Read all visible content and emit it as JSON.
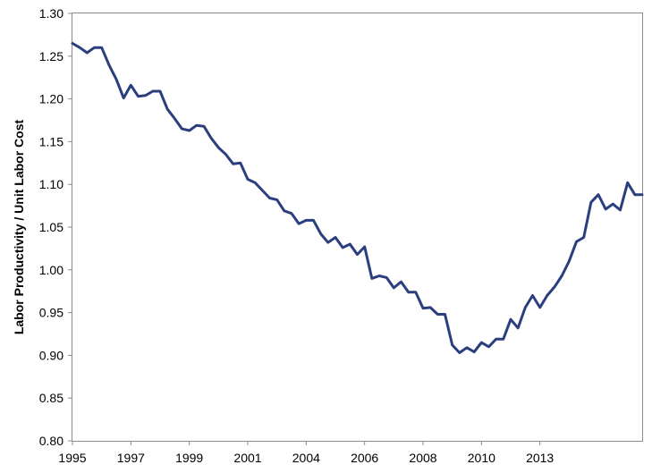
{
  "chart_data": {
    "type": "line",
    "title": "",
    "xlabel": "",
    "ylabel": "Labor Productivity / Unit Labor Cost",
    "ylim": [
      0.8,
      1.3
    ],
    "yticks": [
      "0.80",
      "0.85",
      "0.90",
      "0.95",
      "1.00",
      "1.05",
      "1.10",
      "1.15",
      "1.20",
      "1.25",
      "1.30"
    ],
    "xlim": [
      1995.0,
      2014.5
    ],
    "xticks": [
      {
        "value": 1995.0,
        "label": "1995"
      },
      {
        "value": 1997.0,
        "label": "1997"
      },
      {
        "value": 1999.0,
        "label": "1999"
      },
      {
        "value": 2001.0,
        "label": "2001"
      },
      {
        "value": 2003.0,
        "label": "2004"
      },
      {
        "value": 2005.0,
        "label": "2006"
      },
      {
        "value": 2007.0,
        "label": "2008"
      },
      {
        "value": 2009.0,
        "label": "2010"
      },
      {
        "value": 2011.0,
        "label": "2013"
      }
    ],
    "grid": false,
    "legend": "none",
    "line_color": "#2B3F7F",
    "series": [
      {
        "x": [
          1995.0,
          1995.25,
          1995.5,
          1995.75,
          1996.0,
          1996.25,
          1996.5,
          1996.75,
          1997.0,
          1997.25,
          1997.5,
          1997.75,
          1998.0,
          1998.25,
          1998.5,
          1998.75,
          1999.0,
          1999.25,
          1999.5,
          1999.75,
          2000.0,
          2000.25,
          2000.5,
          2000.75,
          2001.0,
          2001.25,
          2001.5,
          2001.75,
          2002.0,
          2002.25,
          2002.5,
          2002.75,
          2003.0,
          2003.25,
          2003.5,
          2003.75,
          2004.0,
          2004.25,
          2004.5,
          2004.75,
          2005.0,
          2005.25,
          2005.5,
          2005.75,
          2006.0,
          2006.25,
          2006.5,
          2006.75,
          2007.0,
          2007.25,
          2007.5,
          2007.75,
          2008.0,
          2008.25,
          2008.5,
          2008.75,
          2009.0,
          2009.25,
          2009.5,
          2009.75,
          2010.0,
          2010.25,
          2010.5,
          2010.75,
          2011.0,
          2011.25,
          2011.5,
          2011.75,
          2012.0,
          2012.25,
          2012.5,
          2012.75,
          2013.0,
          2013.25,
          2013.5,
          2013.75,
          2014.0,
          2014.25,
          2014.5
        ],
        "values": [
          1.265,
          1.26,
          1.254,
          1.26,
          1.26,
          1.24,
          1.223,
          1.201,
          1.216,
          1.203,
          1.204,
          1.209,
          1.209,
          1.188,
          1.177,
          1.165,
          1.163,
          1.169,
          1.168,
          1.154,
          1.143,
          1.135,
          1.124,
          1.125,
          1.106,
          1.102,
          1.093,
          1.084,
          1.082,
          1.069,
          1.066,
          1.054,
          1.058,
          1.058,
          1.042,
          1.032,
          1.038,
          1.026,
          1.03,
          1.018,
          1.027,
          0.99,
          0.993,
          0.991,
          0.979,
          0.986,
          0.974,
          0.974,
          0.955,
          0.956,
          0.948,
          0.948,
          0.912,
          0.903,
          0.909,
          0.904,
          0.915,
          0.91,
          0.919,
          0.919,
          0.942,
          0.932,
          0.956,
          0.97,
          0.956,
          0.97,
          0.98,
          0.993,
          1.01,
          1.033,
          1.038,
          1.079,
          1.088,
          1.071,
          1.077,
          1.07,
          1.102,
          1.088,
          1.088
        ]
      }
    ]
  }
}
